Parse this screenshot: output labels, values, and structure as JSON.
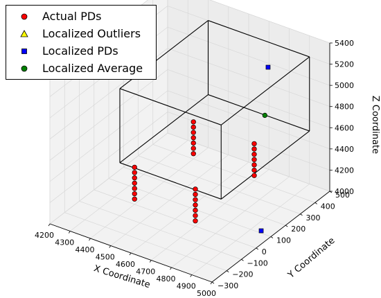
{
  "chart_data": {
    "type": "scatter",
    "projection": "3d",
    "title": "",
    "xlabel": "X Coordinate",
    "ylabel": "Y Coordinate",
    "zlabel": "Z Coordinate",
    "xlim": [
      4200,
      5000
    ],
    "ylim": [
      -300,
      500
    ],
    "zlim": [
      4000,
      5400
    ],
    "xticks": [
      "4200",
      "4300",
      "4400",
      "4500",
      "4600",
      "4700",
      "4800",
      "4900",
      "5000"
    ],
    "yticks": [
      "−300",
      "−200",
      "−100",
      "0",
      "100",
      "200",
      "300",
      "400",
      "500"
    ],
    "zticks": [
      "4000",
      "4200",
      "4400",
      "4600",
      "4800",
      "5000",
      "5200",
      "5400"
    ],
    "grid": true,
    "legend_position": "top-left",
    "legend": [
      {
        "label": "Actual PDs",
        "marker": "circle",
        "color": "#ff0000"
      },
      {
        "label": "Localized Outliers",
        "marker": "triangle",
        "color": "#ffff00"
      },
      {
        "label": "Localized PDs",
        "marker": "square",
        "color": "#0000ff"
      },
      {
        "label": "Localized Average",
        "marker": "circle",
        "color": "#008000"
      }
    ],
    "series": [
      {
        "name": "Actual PDs",
        "marker": "circle",
        "color": "#ff0000",
        "points": [
          [
            4400,
            0,
            4050
          ],
          [
            4400,
            0,
            4100
          ],
          [
            4400,
            0,
            4150
          ],
          [
            4400,
            0,
            4200
          ],
          [
            4400,
            0,
            4250
          ],
          [
            4400,
            0,
            4300
          ],
          [
            4400,
            0,
            4350
          ],
          [
            4700,
            0,
            4050
          ],
          [
            4700,
            0,
            4100
          ],
          [
            4700,
            0,
            4150
          ],
          [
            4700,
            0,
            4200
          ],
          [
            4700,
            0,
            4250
          ],
          [
            4700,
            0,
            4300
          ],
          [
            4700,
            0,
            4350
          ],
          [
            4400,
            400,
            4050
          ],
          [
            4400,
            400,
            4100
          ],
          [
            4400,
            400,
            4150
          ],
          [
            4400,
            400,
            4200
          ],
          [
            4400,
            400,
            4250
          ],
          [
            4400,
            400,
            4300
          ],
          [
            4400,
            400,
            4350
          ],
          [
            4700,
            400,
            4050
          ],
          [
            4700,
            400,
            4100
          ],
          [
            4700,
            400,
            4150
          ],
          [
            4700,
            400,
            4200
          ],
          [
            4700,
            400,
            4250
          ],
          [
            4700,
            400,
            4300
          ],
          [
            4700,
            400,
            4350
          ]
        ]
      },
      {
        "name": "Localized Outliers",
        "marker": "triangle",
        "color": "#ffff00",
        "points": []
      },
      {
        "name": "Localized PDs",
        "marker": "square",
        "color": "#0000ff",
        "points": [
          [
            4748,
            428,
            5075
          ],
          [
            4945,
            110,
            4007
          ]
        ]
      },
      {
        "name": "Localized Average",
        "marker": "circle",
        "color": "#008000",
        "points": [
          [
            4820,
            307,
            4800
          ]
        ]
      }
    ],
    "box": {
      "x": [
        4400,
        4900
      ],
      "y": [
        -100,
        500
      ],
      "z": [
        4500,
        5200
      ]
    }
  }
}
